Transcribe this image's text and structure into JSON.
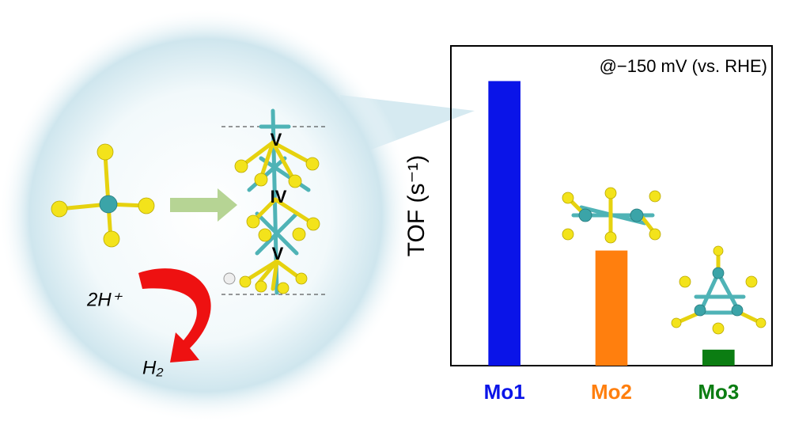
{
  "chart_data": {
    "type": "bar",
    "annotation": "@−150 mV (vs. RHE)",
    "y_label": "TOF (s⁻¹)",
    "categories": [
      "Mo1",
      "Mo2",
      "Mo3"
    ],
    "values": [
      89,
      36,
      5
    ],
    "colors": [
      "#0a14e8",
      "#ff7f0e",
      "#0b7d12"
    ],
    "ylim": [
      0,
      100
    ]
  },
  "diagram": {
    "site_labels": [
      "V",
      "IV",
      "V"
    ],
    "reactant": "2H⁺",
    "product": "H₂"
  }
}
